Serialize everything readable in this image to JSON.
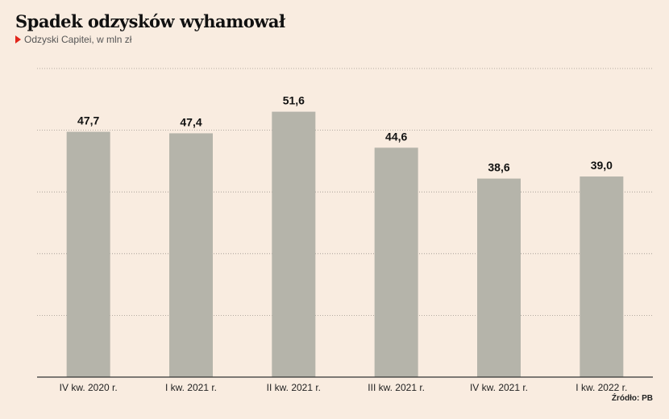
{
  "header": {
    "title": "Spadek odzysków wyhamował",
    "subtitle": "Odzyski Capitei, w mln zł"
  },
  "footer": {
    "source": "Źródło: PB"
  },
  "colors": {
    "background": "#f9ece0",
    "bar": "#b5b4aa",
    "marker": "#e1251b"
  },
  "chart_data": {
    "type": "bar",
    "title": "Spadek odzysków wyhamował",
    "subtitle": "Odzyski Capitei, w mln zł",
    "categories": [
      "IV kw. 2020 r.",
      "I kw. 2021 r.",
      "II kw. 2021 r.",
      "III kw. 2021 r.",
      "IV kw. 2021 r.",
      "I kw. 2022 r."
    ],
    "values": [
      47.7,
      47.4,
      51.6,
      44.6,
      38.6,
      39.0
    ],
    "value_labels": [
      "47,7",
      "47,4",
      "51,6",
      "44,6",
      "38,6",
      "39,0"
    ],
    "ylim": [
      0,
      60
    ],
    "grid": true,
    "legend": "none"
  }
}
